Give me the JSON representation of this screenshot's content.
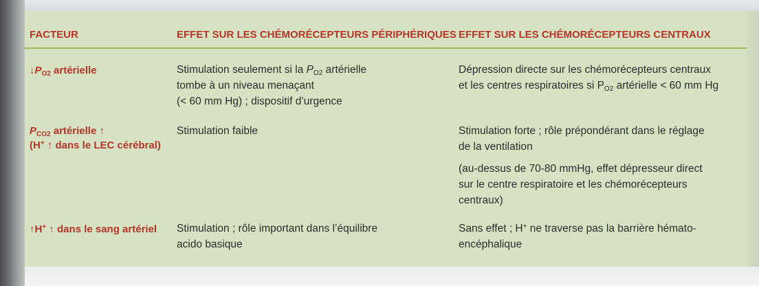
{
  "headers": {
    "facteur": "FACTEUR",
    "peripheral": "EFFET SUR LES CHÉMORÉCEPTEURS PÉRIPHÉRIQUES",
    "central": "EFFET SUR LES CHÉMORÉCEPTEURS CENTRAUX"
  },
  "rows": [
    {
      "factor": {
        "arrow": "↓",
        "var": "P",
        "var_sub": "O2",
        "rest": " artérielle"
      },
      "peripheral": {
        "l1_a": "Stimulation seulement si la ",
        "l1_var": "P",
        "l1_sub": "O2",
        "l1_b": " artérielle",
        "l2": "tombe à un niveau menaçant",
        "l3": "(< 60 mm Hg) ; dispositif d’urgence"
      },
      "central": {
        "l1": "Dépression directe sur les chémorécepteurs centraux",
        "l2_a": "et les centres respiratoires si P",
        "l2_sub": "O2",
        "l2_b": " artérielle < 60 mm Hg"
      }
    },
    {
      "factor": {
        "var": "P",
        "var_sub": "CO2",
        "l1_rest": " artérielle ↑",
        "l2_a": "(H",
        "l2_sup": "+",
        "l2_b": " ↑ dans le LEC cérébral)"
      },
      "peripheral": {
        "l1": "Stimulation faible"
      },
      "central": {
        "l1": "Stimulation forte ; rôle prépondérant dans le réglage",
        "l2": "de la ventilation",
        "l3": "(au-dessus de 70-80 mmHg, effet dépresseur direct",
        "l4": "sur  le centre respiratoire et les chémorécepteurs",
        "l5": "centraux)"
      }
    },
    {
      "factor": {
        "a": "↑H",
        "sup": "+",
        "b": " ↑ dans le sang artériel"
      },
      "peripheral": {
        "l1": "Stimulation ; rôle important dans l’équilibre",
        "l2": "acido basique"
      },
      "central": {
        "l1_a": "Sans effet ; H",
        "l1_sup": "+",
        "l1_b": " ne traverse pas la barrière hémato-",
        "l2": "encéphalique"
      }
    }
  ]
}
